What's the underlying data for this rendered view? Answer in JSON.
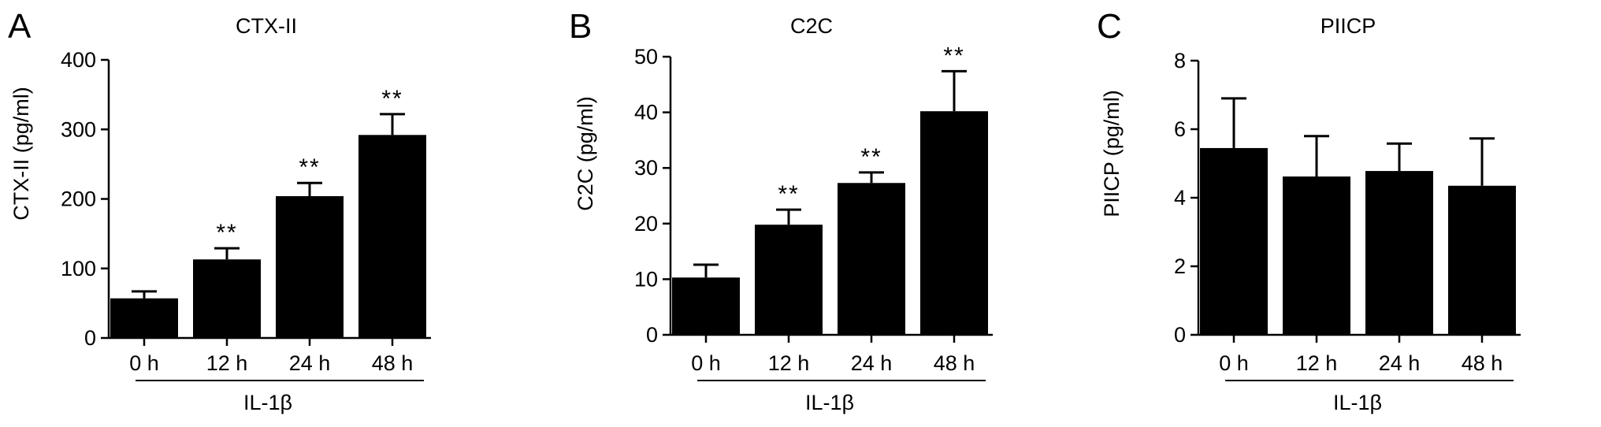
{
  "chart_data": [
    {
      "type": "bar",
      "panel": "A",
      "title": "CTX-II",
      "ylabel": "CTX-II (pg/ml)",
      "xlabel": "",
      "group_label": "IL-1β",
      "categories": [
        "0 h",
        "12 h",
        "24 h",
        "48 h"
      ],
      "values": [
        57,
        113,
        204,
        292
      ],
      "errors": [
        10,
        16,
        19,
        30
      ],
      "significance": [
        "",
        "**",
        "**",
        "**"
      ],
      "ylim": [
        0,
        400
      ],
      "yticks": [
        0,
        100,
        200,
        300,
        400
      ],
      "bar_color": "#000000"
    },
    {
      "type": "bar",
      "panel": "B",
      "title": "C2C",
      "ylabel": "C2C (pg/ml)",
      "xlabel": "",
      "group_label": "IL-1β",
      "categories": [
        "0 h",
        "12 h",
        "24 h",
        "48 h"
      ],
      "values": [
        10.3,
        19.8,
        27.3,
        40.2
      ],
      "errors": [
        2.3,
        2.7,
        1.9,
        7.2
      ],
      "significance": [
        "",
        "**",
        "**",
        "**"
      ],
      "ylim": [
        0,
        50
      ],
      "yticks": [
        0,
        10,
        20,
        30,
        40,
        50
      ],
      "bar_color": "#000000"
    },
    {
      "type": "bar",
      "panel": "C",
      "title": "PIICP",
      "ylabel": "PIICP (pg/ml)",
      "xlabel": "",
      "group_label": "IL-1β",
      "categories": [
        "0 h",
        "12 h",
        "24 h",
        "48 h"
      ],
      "values": [
        5.45,
        4.62,
        4.78,
        4.35
      ],
      "errors": [
        1.45,
        1.18,
        0.8,
        1.38
      ],
      "significance": [
        "",
        "",
        "",
        ""
      ],
      "ylim": [
        0,
        8
      ],
      "yticks": [
        0,
        2,
        4,
        6,
        8
      ],
      "bar_color": "#000000"
    }
  ]
}
